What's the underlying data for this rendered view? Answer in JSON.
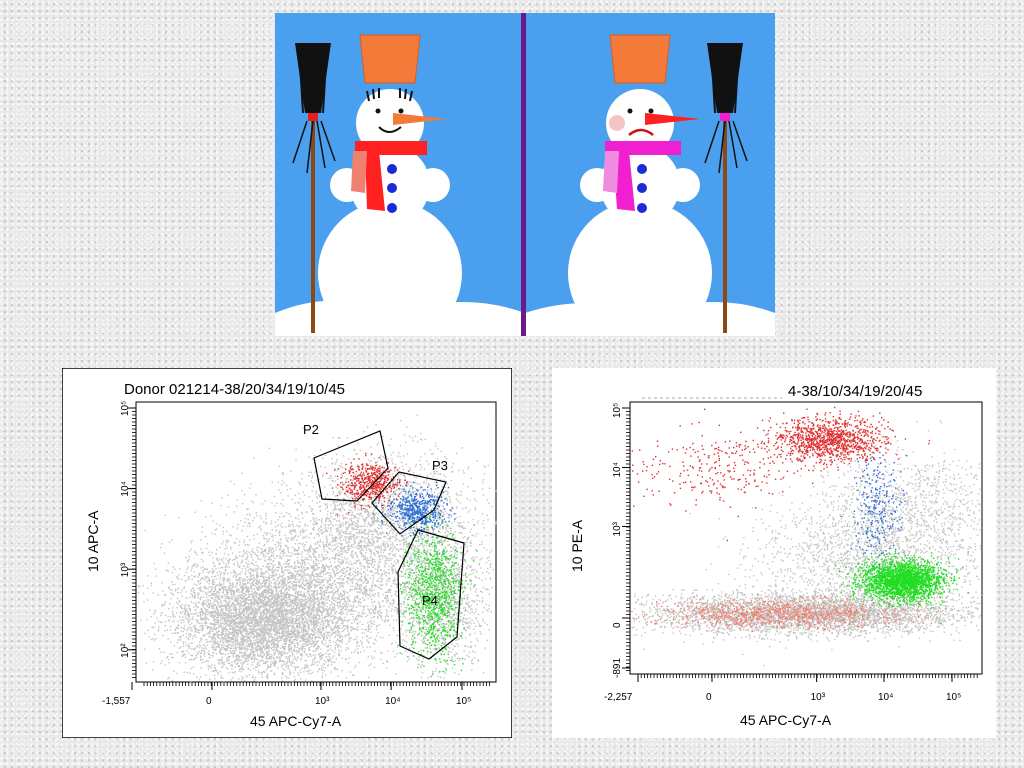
{
  "slide": {
    "background_color": "#e9e9e9",
    "illustration": {
      "left_figure": "happy snowman with orange bucket hat, red scarf, blue buttons and broom",
      "right_figure": "sad snowman with orange bucket hat, magenta scarf, blue buttons and broom",
      "sky_color": "#4aa0ef",
      "divider_color": "#6a1a8a"
    }
  },
  "chart_data": [
    {
      "type": "scatter",
      "title": "Donor 021214-38/20/34/19/10/45",
      "xlabel": "45 APC-Cy7-A",
      "ylabel": "10 APC-A",
      "x_scale": "biexponential",
      "y_scale": "log",
      "x_ticks": [
        "-1,557",
        "0",
        "10³",
        "10⁴",
        "10⁵"
      ],
      "y_ticks": [
        "10²",
        "10³",
        "10⁴",
        "10⁵"
      ],
      "background_population": {
        "color": "#c4c4c4",
        "x_range": [
          -1000,
          100000
        ],
        "y_range": [
          80,
          40000
        ]
      },
      "gates": [
        {
          "name": "P2",
          "color": "#e03030",
          "x_center": 5000,
          "y_center": 12000
        },
        {
          "name": "P3",
          "color": "#2d6fd8",
          "x_center": 22000,
          "y_center": 5500
        },
        {
          "name": "P4",
          "color": "#22dd22",
          "x_center": 40000,
          "y_center": 500
        }
      ]
    },
    {
      "type": "scatter",
      "title": "4-38/10/34/19/20/45",
      "xlabel": "45 APC-Cy7-A",
      "ylabel": "10 PE-A",
      "x_scale": "biexponential",
      "y_scale": "biexponential",
      "x_ticks": [
        "-2,257",
        "0",
        "10³",
        "10⁴",
        "10⁵"
      ],
      "y_ticks": [
        "-891",
        "0",
        "10³",
        "10⁴",
        "10⁵"
      ],
      "background_population": {
        "color": "#c4c4c4"
      },
      "populations": [
        {
          "color": "#e03030",
          "x_center": 1500,
          "y_center": 30000
        },
        {
          "color": "#2d6fd8",
          "x_center": 8000,
          "y_center": 2000
        },
        {
          "color": "#22dd22",
          "x_center": 18000,
          "y_center": 100
        }
      ]
    }
  ]
}
